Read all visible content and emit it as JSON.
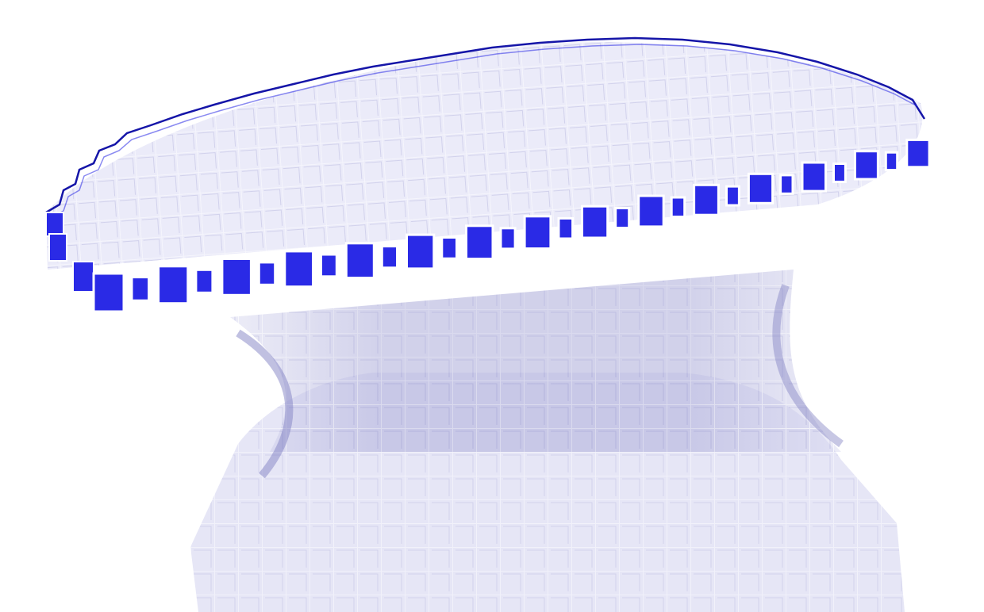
{
  "scene": {
    "subject": "voxel-hyperboloid",
    "colors": {
      "background": "#ffffff",
      "rim_voxel_face": "#2a2ae6",
      "rim_voxel_edge": "#1515a8",
      "translucent_voxel_fill": "#dcdcf4",
      "translucent_voxel_edge": "#ffffff",
      "ghost_tint": "#9090cc"
    }
  }
}
